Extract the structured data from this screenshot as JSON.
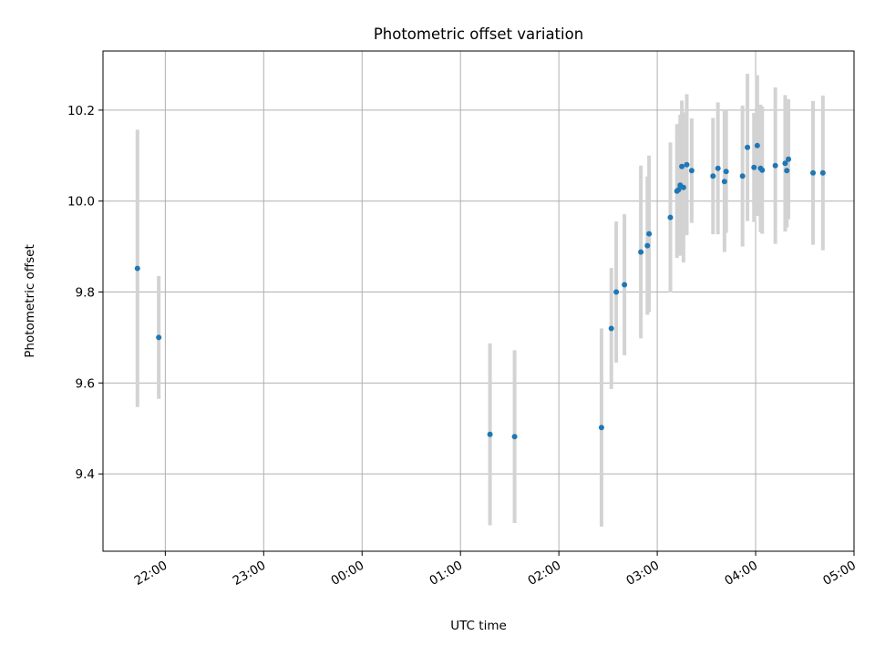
{
  "chart_data": {
    "type": "scatter",
    "title": "Photometric offset variation",
    "xlabel": "UTC time",
    "ylabel": "Photometric offset",
    "x_range": [
      "21:22",
      "05:00"
    ],
    "ylim": [
      9.23,
      10.33
    ],
    "grid": true,
    "xticks": [
      "22:00",
      "23:00",
      "00:00",
      "01:00",
      "02:00",
      "03:00",
      "04:00",
      "05:00"
    ],
    "yticks": [
      "9.4",
      "9.6",
      "9.8",
      "10.0",
      "10.2"
    ],
    "colors": {
      "point": "#1f77b4",
      "errorbar": "#d3d3d3",
      "grid": "#b0b0b0"
    },
    "series": [
      {
        "points": [
          {
            "t": "21:43",
            "y": 9.852,
            "err": 0.305
          },
          {
            "t": "21:56",
            "y": 9.7,
            "err": 0.135
          },
          {
            "t": "01:18",
            "y": 9.487,
            "err": 0.2
          },
          {
            "t": "01:33",
            "y": 9.482,
            "err": 0.19
          },
          {
            "t": "02:26",
            "y": 9.502,
            "err": 0.218
          },
          {
            "t": "02:32",
            "y": 9.72,
            "err": 0.133
          },
          {
            "t": "02:35",
            "y": 9.8,
            "err": 0.155
          },
          {
            "t": "02:40",
            "y": 9.816,
            "err": 0.155
          },
          {
            "t": "02:50",
            "y": 9.888,
            "err": 0.19
          },
          {
            "t": "02:54",
            "y": 9.902,
            "err": 0.152
          },
          {
            "t": "02:55",
            "y": 9.928,
            "err": 0.172
          },
          {
            "t": "03:08",
            "y": 9.964,
            "err": 0.165
          },
          {
            "t": "03:12",
            "y": 10.022,
            "err": 0.147
          },
          {
            "t": "03:13",
            "y": 10.025,
            "err": 0.145
          },
          {
            "t": "03:14",
            "y": 10.035,
            "err": 0.155
          },
          {
            "t": "03:15",
            "y": 10.076,
            "err": 0.145
          },
          {
            "t": "03:16",
            "y": 10.03,
            "err": 0.165
          },
          {
            "t": "03:18",
            "y": 10.08,
            "err": 0.155
          },
          {
            "t": "03:21",
            "y": 10.067,
            "err": 0.115
          },
          {
            "t": "03:34",
            "y": 10.055,
            "err": 0.128
          },
          {
            "t": "03:37",
            "y": 10.072,
            "err": 0.145
          },
          {
            "t": "03:41",
            "y": 10.043,
            "err": 0.155
          },
          {
            "t": "03:42",
            "y": 10.065,
            "err": 0.135
          },
          {
            "t": "03:52",
            "y": 10.055,
            "err": 0.155
          },
          {
            "t": "03:55",
            "y": 10.118,
            "err": 0.162
          },
          {
            "t": "03:59",
            "y": 10.074,
            "err": 0.12
          },
          {
            "t": "04:01",
            "y": 10.122,
            "err": 0.155
          },
          {
            "t": "04:03",
            "y": 10.072,
            "err": 0.14
          },
          {
            "t": "04:04",
            "y": 10.068,
            "err": 0.14
          },
          {
            "t": "04:12",
            "y": 10.078,
            "err": 0.172
          },
          {
            "t": "04:18",
            "y": 10.083,
            "err": 0.15
          },
          {
            "t": "04:19",
            "y": 10.067,
            "err": 0.125
          },
          {
            "t": "04:20",
            "y": 10.092,
            "err": 0.132
          },
          {
            "t": "04:35",
            "y": 10.062,
            "err": 0.158
          },
          {
            "t": "04:41",
            "y": 10.062,
            "err": 0.17
          }
        ]
      }
    ]
  }
}
